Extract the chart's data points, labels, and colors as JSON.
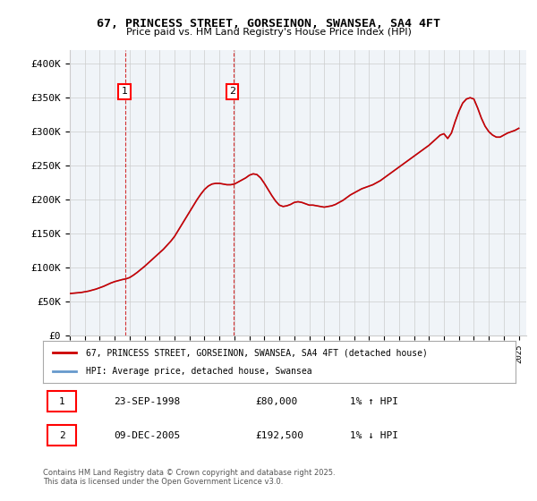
{
  "title": "67, PRINCESS STREET, GORSEINON, SWANSEA, SA4 4FT",
  "subtitle": "Price paid vs. HM Land Registry's House Price Index (HPI)",
  "ylabel_ticks": [
    "£0",
    "£50K",
    "£100K",
    "£150K",
    "£200K",
    "£250K",
    "£300K",
    "£350K",
    "£400K"
  ],
  "ytick_values": [
    0,
    50000,
    100000,
    150000,
    200000,
    250000,
    300000,
    350000,
    400000
  ],
  "ylim": [
    0,
    420000
  ],
  "xlim_start": 1995.0,
  "xlim_end": 2025.5,
  "sale1_year": 1998.73,
  "sale1_price": 80000,
  "sale1_label": "1",
  "sale2_year": 2005.94,
  "sale2_price": 192500,
  "sale2_label": "2",
  "sale1_date": "23-SEP-1998",
  "sale1_amount": "£80,000",
  "sale1_hpi": "1% ↑ HPI",
  "sale2_date": "09-DEC-2005",
  "sale2_amount": "£192,500",
  "sale2_hpi": "1% ↓ HPI",
  "legend_line1": "67, PRINCESS STREET, GORSEINON, SWANSEA, SA4 4FT (detached house)",
  "legend_line2": "HPI: Average price, detached house, Swansea",
  "footer": "Contains HM Land Registry data © Crown copyright and database right 2025.\nThis data is licensed under the Open Government Licence v3.0.",
  "line_color_red": "#cc0000",
  "line_color_blue": "#6699cc",
  "bg_color": "#f0f4f8",
  "grid_color": "#cccccc",
  "vline_color": "#cc0000",
  "hpi_data_years": [
    1995.0,
    1995.25,
    1995.5,
    1995.75,
    1996.0,
    1996.25,
    1996.5,
    1996.75,
    1997.0,
    1997.25,
    1997.5,
    1997.75,
    1998.0,
    1998.25,
    1998.5,
    1998.75,
    1999.0,
    1999.25,
    1999.5,
    1999.75,
    2000.0,
    2000.25,
    2000.5,
    2000.75,
    2001.0,
    2001.25,
    2001.5,
    2001.75,
    2002.0,
    2002.25,
    2002.5,
    2002.75,
    2003.0,
    2003.25,
    2003.5,
    2003.75,
    2004.0,
    2004.25,
    2004.5,
    2004.75,
    2005.0,
    2005.25,
    2005.5,
    2005.75,
    2006.0,
    2006.25,
    2006.5,
    2006.75,
    2007.0,
    2007.25,
    2007.5,
    2007.75,
    2008.0,
    2008.25,
    2008.5,
    2008.75,
    2009.0,
    2009.25,
    2009.5,
    2009.75,
    2010.0,
    2010.25,
    2010.5,
    2010.75,
    2011.0,
    2011.25,
    2011.5,
    2011.75,
    2012.0,
    2012.25,
    2012.5,
    2012.75,
    2013.0,
    2013.25,
    2013.5,
    2013.75,
    2014.0,
    2014.25,
    2014.5,
    2014.75,
    2015.0,
    2015.25,
    2015.5,
    2015.75,
    2016.0,
    2016.25,
    2016.5,
    2016.75,
    2017.0,
    2017.25,
    2017.5,
    2017.75,
    2018.0,
    2018.25,
    2018.5,
    2018.75,
    2019.0,
    2019.25,
    2019.5,
    2019.75,
    2020.0,
    2020.25,
    2020.5,
    2020.75,
    2021.0,
    2021.25,
    2021.5,
    2021.75,
    2022.0,
    2022.25,
    2022.5,
    2022.75,
    2023.0,
    2023.25,
    2023.5,
    2023.75,
    2024.0,
    2024.25,
    2024.5,
    2024.75,
    2025.0
  ],
  "hpi_data_values": [
    62000,
    62500,
    63000,
    63500,
    64500,
    65500,
    67000,
    68500,
    70500,
    72500,
    75000,
    77500,
    79500,
    81000,
    82500,
    83500,
    85500,
    89000,
    93000,
    97500,
    102000,
    107000,
    112000,
    117000,
    122000,
    127000,
    133000,
    139000,
    146000,
    155000,
    164000,
    173000,
    182000,
    191000,
    200000,
    208000,
    215000,
    220000,
    223000,
    224000,
    224000,
    223000,
    222000,
    222000,
    223000,
    226000,
    229000,
    232000,
    236000,
    238000,
    237000,
    232000,
    224000,
    215000,
    206000,
    198000,
    192000,
    190000,
    191000,
    193000,
    196000,
    197000,
    196000,
    194000,
    192000,
    192000,
    191000,
    190000,
    189000,
    190000,
    191000,
    193000,
    196000,
    199000,
    203000,
    207000,
    210000,
    213000,
    216000,
    218000,
    220000,
    222000,
    225000,
    228000,
    232000,
    236000,
    240000,
    244000,
    248000,
    252000,
    256000,
    260000,
    264000,
    268000,
    272000,
    276000,
    280000,
    285000,
    290000,
    295000,
    297000,
    290000,
    298000,
    315000,
    330000,
    342000,
    348000,
    350000,
    348000,
    335000,
    320000,
    308000,
    300000,
    295000,
    292000,
    292000,
    295000,
    298000,
    300000,
    302000,
    305000
  ]
}
